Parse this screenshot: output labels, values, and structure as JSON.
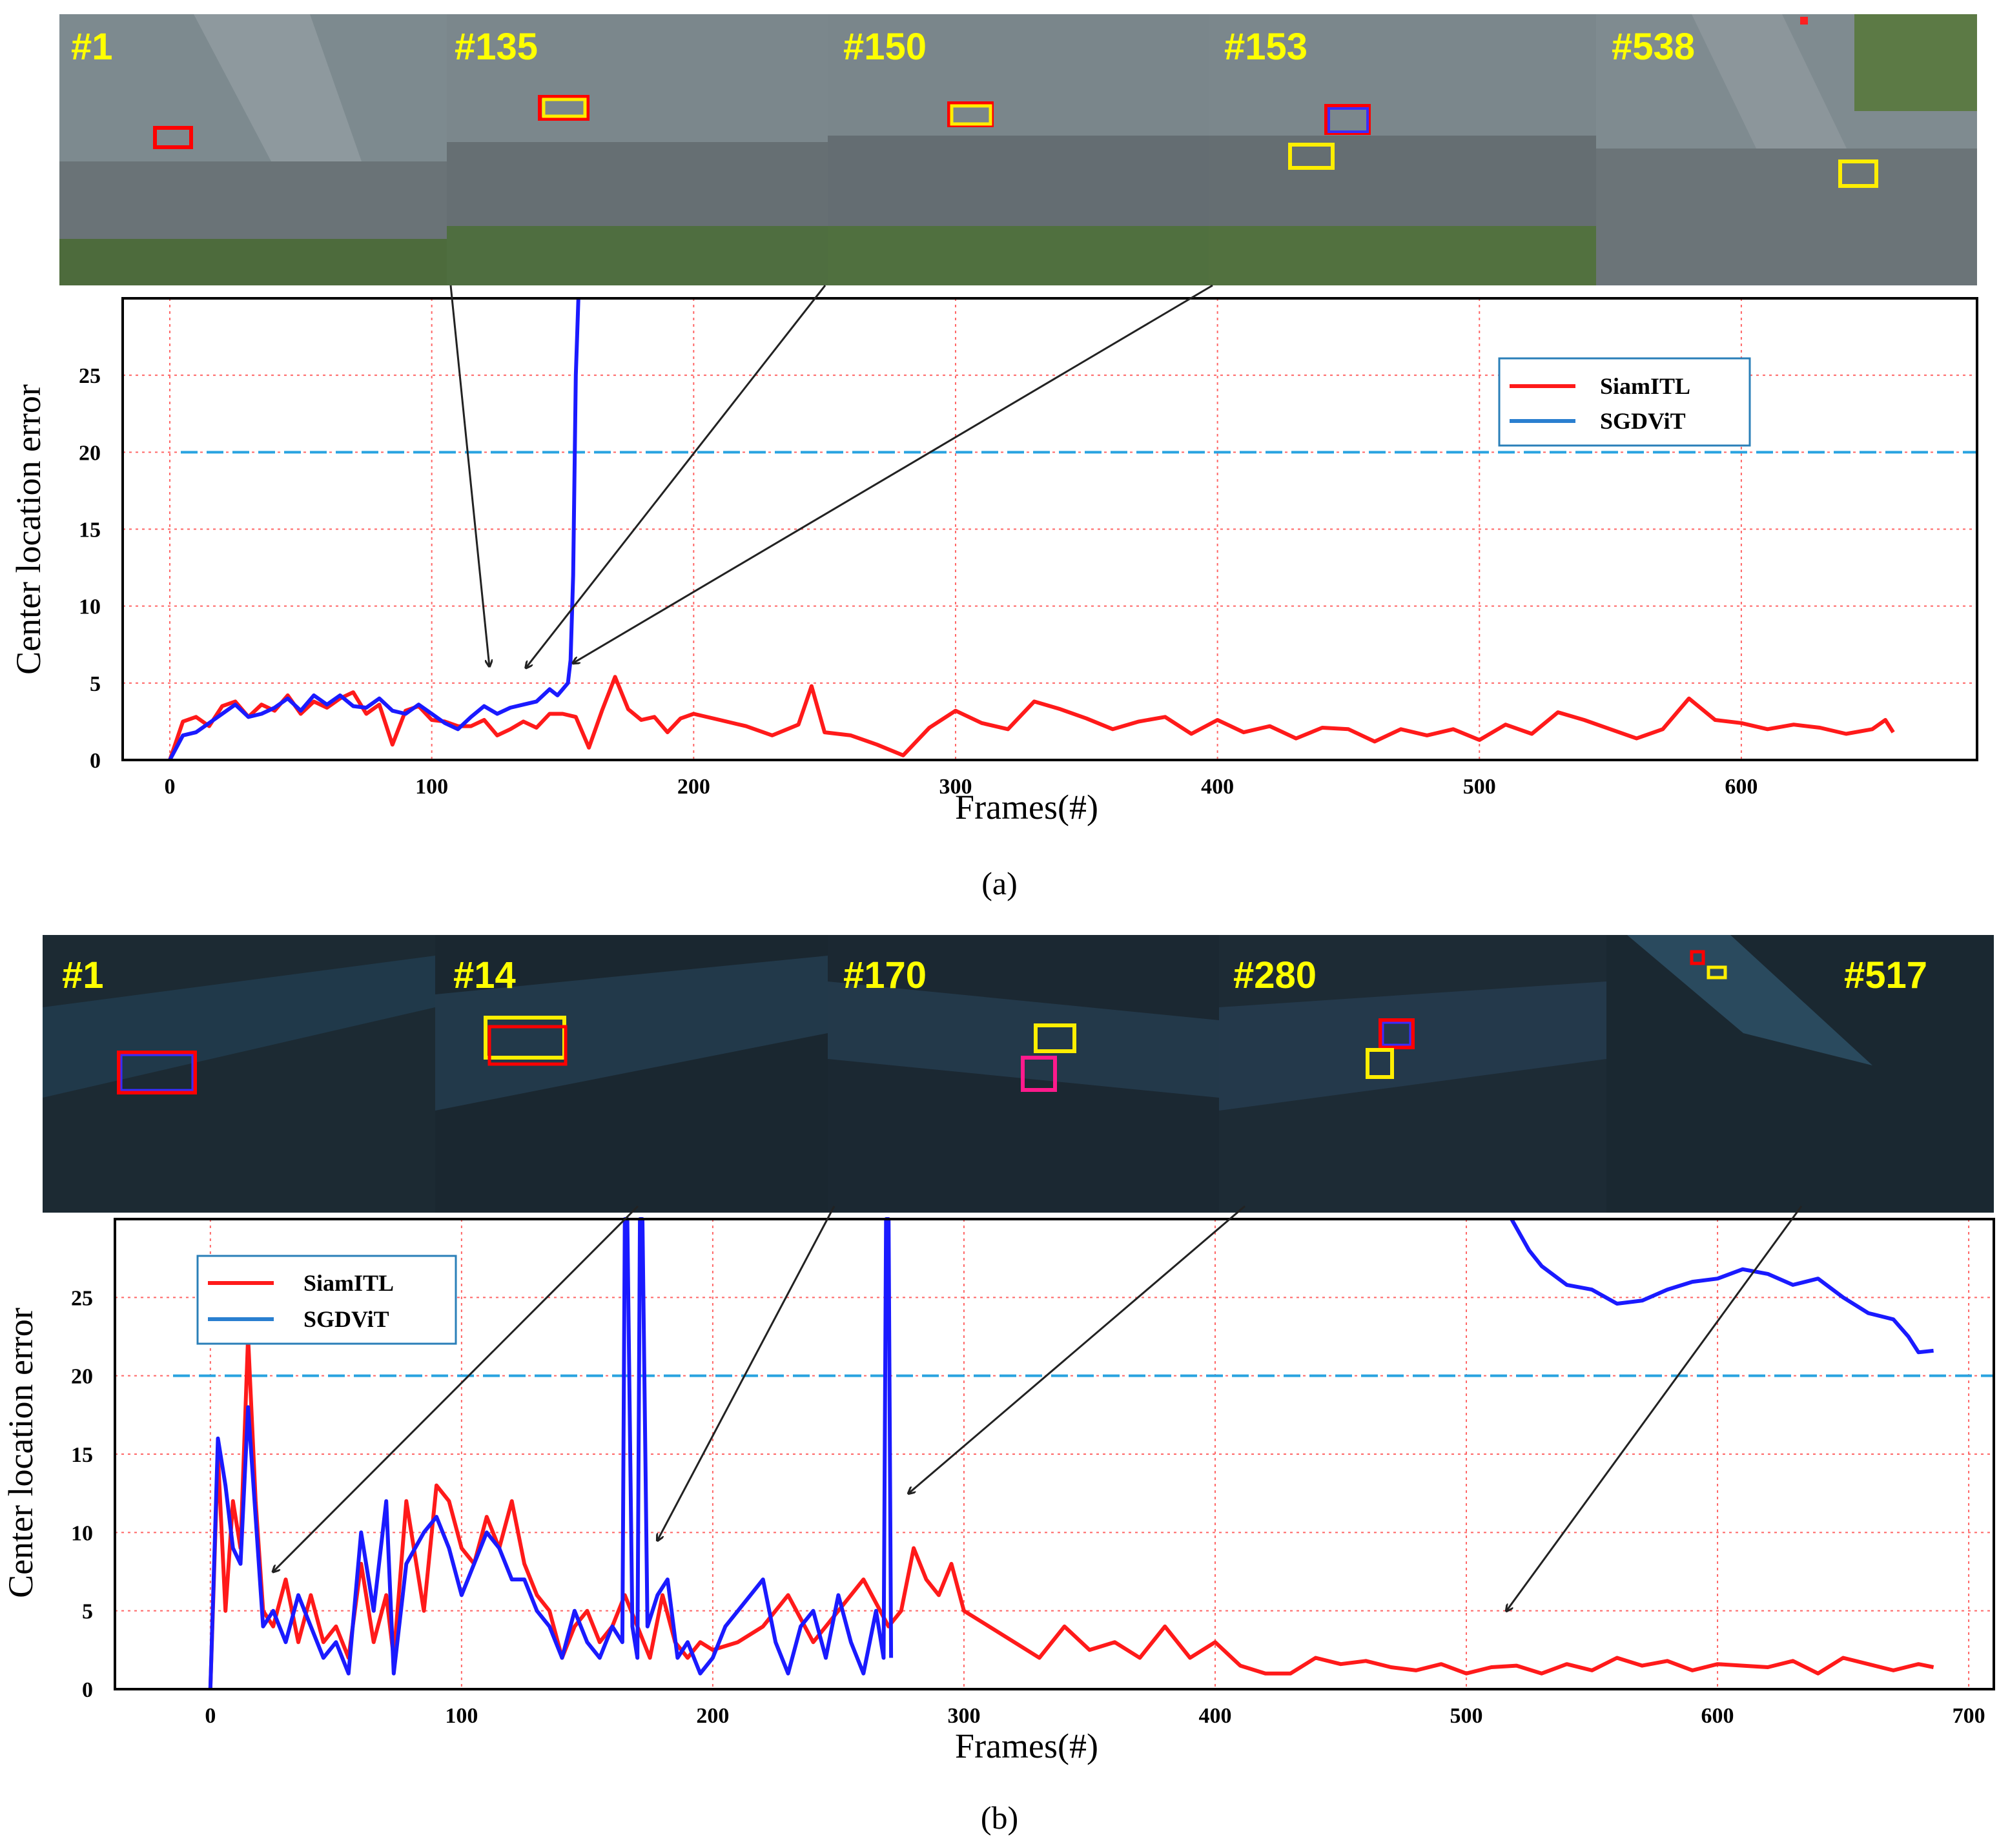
{
  "colors": {
    "siamitl": "#ff1a1a",
    "sgdvit": "#1a1aff",
    "threshold": "#29a3e0",
    "grid": "#ff6666"
  },
  "panels": [
    {
      "caption": "(a)",
      "frames": [
        "#1",
        "#135",
        "#150",
        "#153",
        "#538"
      ],
      "chart_data": {
        "type": "line",
        "xlabel": "Frames(#)",
        "ylabel": "Center location error",
        "xlim": [
          -18,
          690
        ],
        "ylim": [
          0,
          30
        ],
        "xticks": [
          "0",
          "100",
          "200",
          "300",
          "400",
          "500",
          "600"
        ],
        "yticks": [
          "0",
          "5",
          "10",
          "15",
          "20",
          "25"
        ],
        "grid": true,
        "threshold": 20,
        "legend_position": "top-right",
        "arrow_targets": [
          122,
          136,
          154
        ],
        "series": [
          {
            "name": "SiamITL",
            "x": [
              0,
              5,
              10,
              15,
              20,
              25,
              30,
              35,
              40,
              45,
              50,
              55,
              60,
              65,
              70,
              75,
              80,
              85,
              90,
              95,
              100,
              105,
              110,
              115,
              120,
              125,
              130,
              135,
              140,
              145,
              150,
              155,
              160,
              165,
              170,
              175,
              180,
              185,
              190,
              195,
              200,
              210,
              220,
              230,
              240,
              245,
              250,
              260,
              270,
              280,
              290,
              300,
              310,
              320,
              330,
              340,
              350,
              360,
              370,
              380,
              390,
              400,
              410,
              420,
              430,
              440,
              450,
              460,
              470,
              480,
              490,
              500,
              510,
              520,
              530,
              540,
              550,
              560,
              570,
              580,
              590,
              600,
              610,
              620,
              630,
              640,
              650,
              655,
              658
            ],
            "y": [
              0,
              2.5,
              2.8,
              2.2,
              3.5,
              3.8,
              2.8,
              3.6,
              3.2,
              4.2,
              3.0,
              3.8,
              3.4,
              4.0,
              4.4,
              3.0,
              3.6,
              1.0,
              3.2,
              3.5,
              2.6,
              2.5,
              2.2,
              2.2,
              2.6,
              1.6,
              2.0,
              2.5,
              2.1,
              3.0,
              3.0,
              2.8,
              0.8,
              3.2,
              5.4,
              3.3,
              2.6,
              2.8,
              1.8,
              2.7,
              3.0,
              2.6,
              2.2,
              1.6,
              2.3,
              4.8,
              1.8,
              1.6,
              1.0,
              0.3,
              2.1,
              3.2,
              2.4,
              2.0,
              3.8,
              3.3,
              2.7,
              2.0,
              2.5,
              2.8,
              1.7,
              2.6,
              1.8,
              2.2,
              1.4,
              2.1,
              2.0,
              1.2,
              2.0,
              1.6,
              2.0,
              1.3,
              2.3,
              1.7,
              3.1,
              2.6,
              2.0,
              1.4,
              2.0,
              4.0,
              2.6,
              2.4,
              2.0,
              2.3,
              2.1,
              1.7,
              2.0,
              2.6,
              1.8
            ]
          },
          {
            "name": "SGDViT",
            "x": [
              0,
              5,
              10,
              15,
              20,
              25,
              30,
              35,
              40,
              45,
              50,
              55,
              60,
              65,
              70,
              75,
              80,
              85,
              90,
              95,
              100,
              105,
              110,
              115,
              120,
              125,
              130,
              135,
              140,
              145,
              148,
              150,
              152,
              153,
              154,
              155,
              156
            ],
            "y": [
              0,
              1.6,
              1.8,
              2.4,
              3.0,
              3.6,
              2.8,
              3.0,
              3.4,
              4.0,
              3.2,
              4.2,
              3.6,
              4.2,
              3.5,
              3.4,
              4.0,
              3.2,
              3.0,
              3.6,
              3.0,
              2.4,
              2.0,
              2.8,
              3.5,
              3.0,
              3.4,
              3.6,
              3.8,
              4.6,
              4.2,
              4.6,
              5.0,
              6.5,
              12,
              25,
              30
            ]
          }
        ]
      }
    },
    {
      "caption": "(b)",
      "frames": [
        "#1",
        "#14",
        "#170",
        "#280",
        "#517"
      ],
      "chart_data": {
        "type": "line",
        "xlabel": "Frames(#)",
        "ylabel": "Center location error",
        "xlim": [
          -38,
          710
        ],
        "ylim": [
          0,
          30
        ],
        "xticks": [
          "0",
          "100",
          "200",
          "300",
          "400",
          "500",
          "600",
          "700"
        ],
        "yticks": [
          "0",
          "5",
          "10",
          "15",
          "20",
          "25"
        ],
        "grid": true,
        "threshold": 20,
        "legend_position": "top-left",
        "arrow_targets": [
          25,
          178,
          278,
          516
        ],
        "series": [
          {
            "name": "SiamITL",
            "x": [
              0,
              3,
              6,
              9,
              12,
              15,
              18,
              21,
              25,
              30,
              35,
              40,
              45,
              50,
              55,
              60,
              65,
              70,
              73,
              78,
              85,
              90,
              95,
              100,
              105,
              110,
              115,
              120,
              125,
              130,
              135,
              140,
              145,
              150,
              155,
              160,
              165,
              170,
              175,
              180,
              185,
              190,
              195,
              200,
              210,
              220,
              230,
              240,
              250,
              260,
              270,
              275,
              280,
              285,
              290,
              295,
              300,
              310,
              320,
              330,
              340,
              350,
              360,
              370,
              380,
              390,
              400,
              410,
              420,
              430,
              440,
              450,
              460,
              470,
              480,
              490,
              500,
              510,
              520,
              530,
              540,
              550,
              560,
              570,
              580,
              590,
              600,
              610,
              620,
              630,
              640,
              650,
              660,
              670,
              680,
              686
            ],
            "y": [
              0,
              15,
              5,
              12,
              9,
              22.5,
              12,
              5,
              4,
              7,
              3,
              6,
              3,
              4,
              2,
              8,
              3,
              6,
              2,
              12,
              5,
              13,
              12,
              9,
              8,
              11,
              9,
              12,
              8,
              6,
              5,
              2,
              4,
              5,
              3,
              4,
              6,
              4,
              2,
              6,
              3,
              2,
              3,
              2.5,
              3,
              4,
              6,
              3,
              5,
              7,
              4,
              5,
              9,
              7,
              6,
              8,
              5,
              4,
              3,
              2,
              4,
              2.5,
              3,
              2,
              4,
              2,
              3,
              1.5,
              1,
              1,
              2,
              1.6,
              1.8,
              1.4,
              1.2,
              1.6,
              1.0,
              1.4,
              1.5,
              1.0,
              1.6,
              1.2,
              2.0,
              1.5,
              1.8,
              1.2,
              1.6,
              1.5,
              1.4,
              1.8,
              1.0,
              2.0,
              1.6,
              1.2,
              1.6,
              1.4
            ]
          },
          {
            "name": "SGDViT",
            "x": [
              0,
              3,
              6,
              9,
              12,
              15,
              18,
              21,
              25,
              30,
              35,
              40,
              45,
              50,
              55,
              60,
              65,
              70,
              73,
              78,
              85,
              90,
              95,
              100,
              105,
              110,
              115,
              120,
              125,
              130,
              135,
              140,
              145,
              150,
              155,
              160,
              164,
              165,
              166,
              168,
              170,
              171,
              172,
              174,
              178,
              182,
              186,
              190,
              195,
              200,
              205,
              210,
              215,
              220,
              225,
              230,
              235,
              240,
              245,
              250,
              255,
              260,
              265,
              268,
              269,
              270,
              271
            ],
            "y": [
              0,
              16,
              13,
              9,
              8,
              18,
              11,
              4,
              5,
              3,
              6,
              4,
              2,
              3,
              1,
              10,
              5,
              12,
              1,
              8,
              10,
              11,
              9,
              6,
              8,
              10,
              9,
              7,
              7,
              5,
              4,
              2,
              5,
              3,
              2,
              4,
              3,
              30,
              30,
              4,
              2,
              30,
              30,
              4,
              6,
              7,
              2,
              3,
              1,
              2,
              4,
              5,
              6,
              7,
              3,
              1,
              4,
              5,
              2,
              6,
              3,
              1,
              5,
              2,
              30,
              30,
              2
            ]
          },
          {
            "name": "SGDViT",
            "x": [
              518,
              525,
              530,
              540,
              550,
              560,
              570,
              580,
              590,
              600,
              610,
              620,
              630,
              640,
              650,
              660,
              670,
              676,
              680,
              686
            ],
            "y": [
              30,
              28,
              27,
              25.8,
              25.5,
              24.6,
              24.8,
              25.5,
              26,
              26.2,
              26.8,
              26.5,
              25.8,
              26.2,
              25,
              24,
              23.6,
              22.5,
              21.5,
              21.6
            ]
          }
        ]
      }
    }
  ]
}
